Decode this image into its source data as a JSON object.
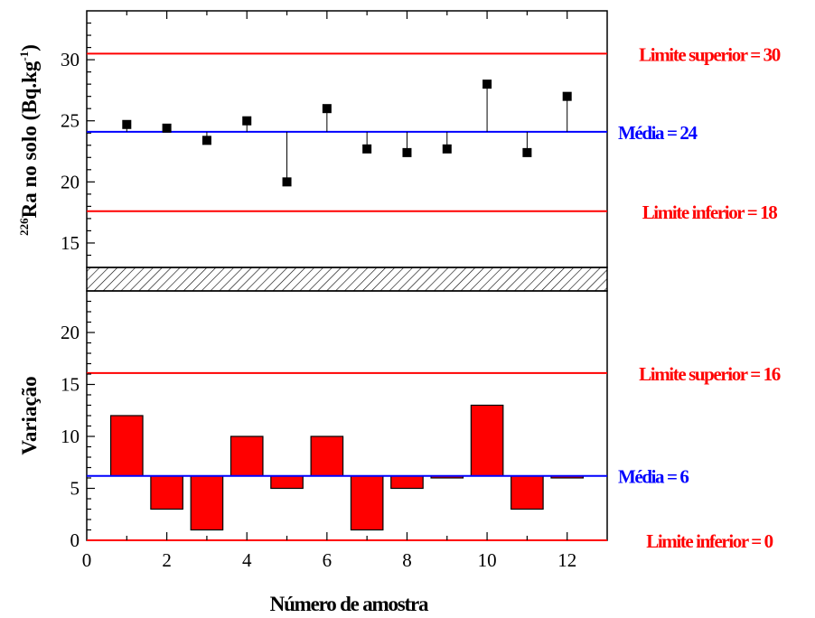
{
  "chart_data": [
    {
      "type": "scatter",
      "ylabel_prefix": "226",
      "ylabel_main": "Ra no solo (Bq.kg",
      "ylabel_exp": "-1",
      "ylabel_suffix": ")",
      "xlim": [
        0,
        13
      ],
      "ylim": [
        13,
        34
      ],
      "yticks": [
        15,
        20,
        25,
        30
      ],
      "series": [
        {
          "x": [
            1,
            2,
            3,
            4,
            5,
            6,
            7,
            8,
            9,
            10,
            11,
            12
          ],
          "values": [
            24.7,
            24.4,
            23.4,
            25.0,
            20.0,
            26.0,
            22.7,
            22.4,
            22.7,
            28.0,
            22.4,
            27.0
          ]
        }
      ],
      "reference_lines": [
        {
          "value": 30.5,
          "label": "Limite superior = 30",
          "color": "#ff0000"
        },
        {
          "value": 24.1,
          "label": "Média = 24",
          "color": "#0000ff"
        },
        {
          "value": 17.6,
          "label": "Limite inferior = 18",
          "color": "#ff0000"
        }
      ]
    },
    {
      "type": "bar",
      "ylabel": "Variação",
      "xlabel": "Número de amostra",
      "xlim": [
        0,
        13
      ],
      "ylim": [
        0,
        24
      ],
      "xticks": [
        0,
        2,
        4,
        6,
        8,
        10,
        12
      ],
      "yticks": [
        0,
        5,
        10,
        15,
        20
      ],
      "baseline": 6.2,
      "bar_color": "#ff0000",
      "x": [
        1,
        2,
        3,
        4,
        5,
        6,
        7,
        8,
        9,
        10,
        11,
        12
      ],
      "values": [
        12,
        3,
        1,
        10,
        5,
        10,
        1,
        5,
        6,
        13,
        3,
        6
      ],
      "reference_lines": [
        {
          "value": 16.1,
          "label": "Limite superior = 16",
          "color": "#ff0000"
        },
        {
          "value": 6.2,
          "label": "Média = 6",
          "color": "#0000ff"
        },
        {
          "value": 0,
          "label": "Limite inferior = 0",
          "color": "#ff0000"
        }
      ]
    }
  ]
}
